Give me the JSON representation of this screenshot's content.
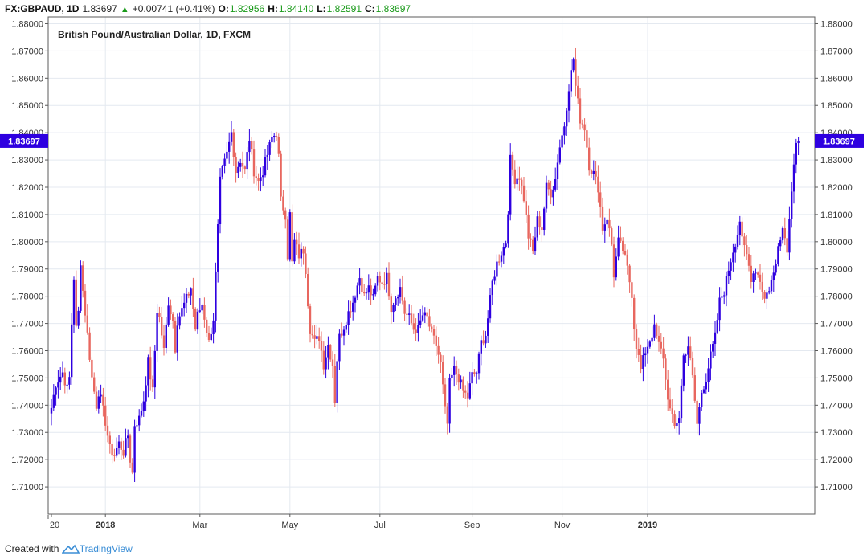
{
  "header": {
    "symbol": "FX:GBPAUD, 1D",
    "last": "1.83697",
    "change_arrow": "▲",
    "change": "+0.00741 (+0.41%)",
    "o_label": "O:",
    "o_value": "1.82956",
    "h_label": "H:",
    "h_value": "1.84140",
    "l_label": "L:",
    "l_value": "1.82591",
    "c_label": "C:",
    "c_value": "1.83697"
  },
  "footer": {
    "created_with": "Created with",
    "brand": "TradingView"
  },
  "chart_data": {
    "type": "candlestick",
    "title": "British Pound/Australian Dollar, 1D, FXCM",
    "ylim": [
      1.7,
      1.8825
    ],
    "ytick_labels": [
      "1.71000",
      "1.72000",
      "1.73000",
      "1.74000",
      "1.75000",
      "1.76000",
      "1.77000",
      "1.78000",
      "1.79000",
      "1.80000",
      "1.81000",
      "1.82000",
      "1.83000",
      "1.84000",
      "1.85000",
      "1.86000",
      "1.87000",
      "1.88000"
    ],
    "yticks": [
      1.71,
      1.72,
      1.73,
      1.74,
      1.75,
      1.76,
      1.77,
      1.78,
      1.79,
      1.8,
      1.81,
      1.82,
      1.83,
      1.84,
      1.85,
      1.86,
      1.87,
      1.88
    ],
    "xtick_labels": [
      "20",
      "2018",
      "Mar",
      "May",
      "Jul",
      "Sep",
      "Nov",
      "2019"
    ],
    "xtick_bold": [
      false,
      true,
      false,
      false,
      false,
      false,
      false,
      true
    ],
    "xtick_index": [
      0,
      24,
      66,
      106,
      146,
      187,
      227,
      265
    ],
    "last_price_label": "1.83697",
    "last_price": 1.83697,
    "up_color": "#2e00e0",
    "down_color": "#e8675f",
    "gridlines": true,
    "close_path": [
      [
        0,
        1.739
      ],
      [
        2,
        1.748
      ],
      [
        5,
        1.752
      ],
      [
        7,
        1.746
      ],
      [
        8,
        1.75
      ],
      [
        9,
        1.77
      ],
      [
        10,
        1.787
      ],
      [
        11,
        1.768
      ],
      [
        12,
        1.774
      ],
      [
        13,
        1.793
      ],
      [
        14,
        1.782
      ],
      [
        16,
        1.766
      ],
      [
        18,
        1.75
      ],
      [
        20,
        1.74
      ],
      [
        21,
        1.745
      ],
      [
        22,
        1.742
      ],
      [
        24,
        1.734
      ],
      [
        26,
        1.724
      ],
      [
        28,
        1.722
      ],
      [
        30,
        1.726
      ],
      [
        32,
        1.723
      ],
      [
        34,
        1.729
      ],
      [
        35,
        1.72
      ],
      [
        36,
        1.715
      ],
      [
        37,
        1.733
      ],
      [
        39,
        1.735
      ],
      [
        41,
        1.742
      ],
      [
        43,
        1.756
      ],
      [
        45,
        1.745
      ],
      [
        46,
        1.76
      ],
      [
        47,
        1.775
      ],
      [
        48,
        1.772
      ],
      [
        50,
        1.76
      ],
      [
        52,
        1.778
      ],
      [
        54,
        1.771
      ],
      [
        55,
        1.761
      ],
      [
        56,
        1.771
      ],
      [
        58,
        1.775
      ],
      [
        60,
        1.779
      ],
      [
        62,
        1.783
      ],
      [
        64,
        1.768
      ],
      [
        65,
        1.773
      ],
      [
        67,
        1.777
      ],
      [
        70,
        1.763
      ],
      [
        72,
        1.772
      ],
      [
        73,
        1.788
      ],
      [
        74,
        1.805
      ],
      [
        75,
        1.822
      ],
      [
        76,
        1.826
      ],
      [
        78,
        1.832
      ],
      [
        79,
        1.836
      ],
      [
        80,
        1.84
      ],
      [
        82,
        1.826
      ],
      [
        84,
        1.83
      ],
      [
        86,
        1.826
      ],
      [
        88,
        1.838
      ],
      [
        90,
        1.826
      ],
      [
        92,
        1.822
      ],
      [
        94,
        1.826
      ],
      [
        96,
        1.832
      ],
      [
        98,
        1.838
      ],
      [
        100,
        1.84
      ],
      [
        101,
        1.831
      ],
      [
        102,
        1.815
      ],
      [
        104,
        1.81
      ],
      [
        105,
        1.795
      ],
      [
        106,
        1.81
      ],
      [
        107,
        1.792
      ],
      [
        108,
        1.8
      ],
      [
        110,
        1.795
      ],
      [
        112,
        1.797
      ],
      [
        113,
        1.79
      ],
      [
        114,
        1.778
      ],
      [
        115,
        1.768
      ],
      [
        117,
        1.763
      ],
      [
        119,
        1.765
      ],
      [
        121,
        1.755
      ],
      [
        123,
        1.762
      ],
      [
        125,
        1.755
      ],
      [
        126,
        1.742
      ],
      [
        127,
        1.757
      ],
      [
        128,
        1.765
      ],
      [
        130,
        1.769
      ],
      [
        132,
        1.774
      ],
      [
        134,
        1.778
      ],
      [
        135,
        1.781
      ],
      [
        137,
        1.787
      ],
      [
        139,
        1.78
      ],
      [
        141,
        1.783
      ],
      [
        143,
        1.779
      ],
      [
        145,
        1.787
      ],
      [
        147,
        1.785
      ],
      [
        149,
        1.787
      ],
      [
        151,
        1.776
      ],
      [
        153,
        1.78
      ],
      [
        155,
        1.783
      ],
      [
        157,
        1.774
      ],
      [
        159,
        1.772
      ],
      [
        161,
        1.768
      ],
      [
        163,
        1.768
      ],
      [
        165,
        1.773
      ],
      [
        167,
        1.772
      ],
      [
        169,
        1.766
      ],
      [
        171,
        1.762
      ],
      [
        173,
        1.755
      ],
      [
        175,
        1.738
      ],
      [
        176,
        1.733
      ],
      [
        177,
        1.748
      ],
      [
        179,
        1.753
      ],
      [
        181,
        1.75
      ],
      [
        183,
        1.745
      ],
      [
        185,
        1.743
      ],
      [
        187,
        1.751
      ],
      [
        189,
        1.752
      ],
      [
        191,
        1.763
      ],
      [
        193,
        1.766
      ],
      [
        194,
        1.772
      ],
      [
        196,
        1.785
      ],
      [
        198,
        1.792
      ],
      [
        200,
        1.796
      ],
      [
        202,
        1.8
      ],
      [
        203,
        1.812
      ],
      [
        204,
        1.83
      ],
      [
        206,
        1.823
      ],
      [
        208,
        1.824
      ],
      [
        210,
        1.816
      ],
      [
        212,
        1.802
      ],
      [
        214,
        1.796
      ],
      [
        216,
        1.808
      ],
      [
        218,
        1.805
      ],
      [
        220,
        1.82
      ],
      [
        222,
        1.818
      ],
      [
        224,
        1.823
      ],
      [
        225,
        1.83
      ],
      [
        226,
        1.835
      ],
      [
        228,
        1.843
      ],
      [
        230,
        1.857
      ],
      [
        232,
        1.867
      ],
      [
        233,
        1.857
      ],
      [
        234,
        1.851
      ],
      [
        235,
        1.845
      ],
      [
        237,
        1.842
      ],
      [
        239,
        1.828
      ],
      [
        241,
        1.825
      ],
      [
        243,
        1.82
      ],
      [
        245,
        1.805
      ],
      [
        247,
        1.809
      ],
      [
        249,
        1.799
      ],
      [
        250,
        1.788
      ],
      [
        252,
        1.8
      ],
      [
        254,
        1.797
      ],
      [
        256,
        1.79
      ],
      [
        258,
        1.781
      ],
      [
        259,
        1.769
      ],
      [
        260,
        1.762
      ],
      [
        262,
        1.753
      ],
      [
        264,
        1.76
      ],
      [
        266,
        1.764
      ],
      [
        268,
        1.768
      ],
      [
        270,
        1.762
      ],
      [
        272,
        1.758
      ],
      [
        273,
        1.749
      ],
      [
        275,
        1.738
      ],
      [
        277,
        1.732
      ],
      [
        279,
        1.736
      ],
      [
        281,
        1.758
      ],
      [
        283,
        1.762
      ],
      [
        285,
        1.75
      ],
      [
        287,
        1.733
      ],
      [
        289,
        1.745
      ],
      [
        291,
        1.75
      ],
      [
        293,
        1.758
      ],
      [
        295,
        1.765
      ],
      [
        297,
        1.778
      ],
      [
        299,
        1.782
      ],
      [
        301,
        1.79
      ],
      [
        303,
        1.797
      ],
      [
        305,
        1.803
      ],
      [
        306,
        1.808
      ],
      [
        307,
        1.8
      ],
      [
        309,
        1.795
      ],
      [
        311,
        1.787
      ],
      [
        313,
        1.79
      ],
      [
        315,
        1.786
      ],
      [
        317,
        1.779
      ],
      [
        319,
        1.783
      ],
      [
        321,
        1.788
      ],
      [
        322,
        1.792
      ],
      [
        323,
        1.8
      ],
      [
        325,
        1.805
      ],
      [
        327,
        1.798
      ],
      [
        328,
        1.808
      ],
      [
        329,
        1.82
      ],
      [
        330,
        1.83
      ],
      [
        331,
        1.837
      ]
    ]
  }
}
